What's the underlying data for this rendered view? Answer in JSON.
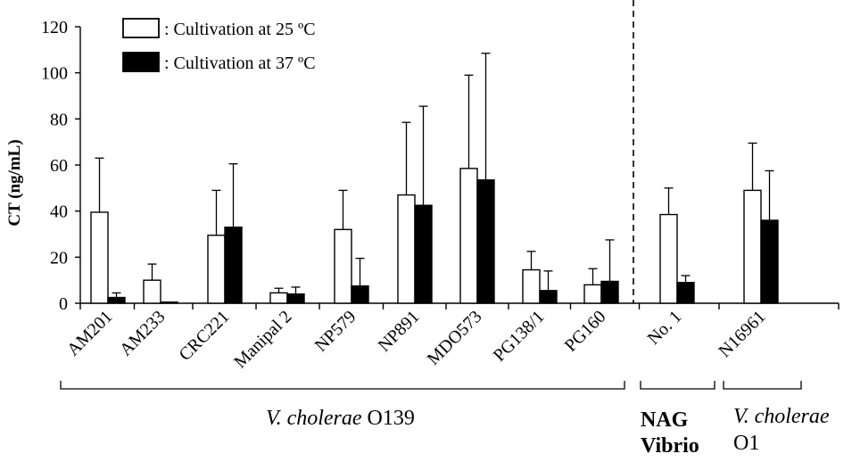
{
  "chart_data": {
    "type": "bar",
    "ylabel": "CT (ng/mL)",
    "ylim": [
      0,
      120
    ],
    "yticks": [
      0,
      20,
      40,
      60,
      80,
      100,
      120
    ],
    "categories": [
      "AM201",
      "AM233",
      "CRC221",
      "Manipal 2",
      "NP579",
      "NP891",
      "MDO573",
      "PG138/1",
      "PG160",
      "No. 1",
      "N16961"
    ],
    "series": [
      {
        "name": ": Cultivation at 25 ºC",
        "fill": "#ffffff",
        "values": [
          39.5,
          10,
          29.5,
          4.5,
          32,
          47,
          58.5,
          14.5,
          8,
          38.5,
          49
        ],
        "errors": [
          23.5,
          7,
          19.5,
          2,
          17,
          31.5,
          40.5,
          8,
          7,
          11.5,
          20.5
        ]
      },
      {
        "name": ": Cultivation at 37 ºC",
        "fill": "#000000",
        "values": [
          2.5,
          0.5,
          33,
          4,
          7.5,
          42.5,
          53.5,
          5.5,
          9.5,
          9,
          36
        ],
        "errors": [
          2,
          0,
          27.5,
          3,
          12,
          43,
          55,
          8.5,
          18,
          3,
          21.5
        ]
      }
    ],
    "groups": [
      {
        "label_italic": "V. cholerae",
        "label_rest": " O139",
        "members": [
          "AM201",
          "AM233",
          "CRC221",
          "Manipal 2",
          "NP579",
          "NP891",
          "MDO573",
          "PG138/1",
          "PG160"
        ]
      },
      {
        "line1": "NAG",
        "line2": "Vibrio",
        "members": [
          "No. 1"
        ]
      },
      {
        "line1": "V. cholerae",
        "line2": "O1",
        "members": [
          "N16961"
        ]
      }
    ],
    "colors": {
      "axis": "#000000",
      "bar_outline": "#000000"
    }
  }
}
